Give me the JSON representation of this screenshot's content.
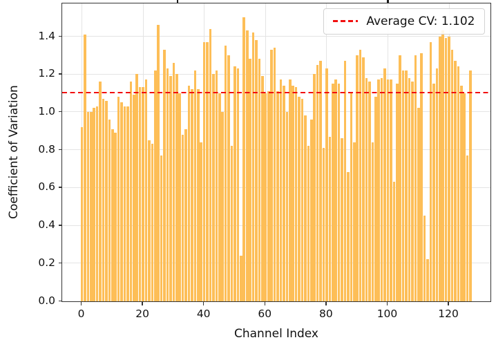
{
  "legend": {
    "label": "Average CV: 1.102"
  },
  "chart_data": {
    "type": "bar",
    "title": "",
    "xlabel": "Channel Index",
    "ylabel": "Coefficient of Variation",
    "x_ticks": [
      0,
      20,
      40,
      60,
      80,
      100,
      120
    ],
    "y_ticks": [
      0.0,
      0.2,
      0.4,
      0.6,
      0.8,
      1.0,
      1.2,
      1.4
    ],
    "y_tick_labels": [
      "0.0",
      "0.2",
      "0.4",
      "0.6",
      "0.8",
      "1.0",
      "1.2",
      "1.4"
    ],
    "xlim": [
      -6.35,
      133.35
    ],
    "ylim": [
      0,
      1.575
    ],
    "grid": true,
    "legend_position": "upper right",
    "bar_color": "#fdbe57",
    "average_line": {
      "value": 1.102,
      "color": "#f10e0e",
      "style": "dashed",
      "label": "Average CV: 1.102"
    },
    "x": [
      0,
      1,
      2,
      3,
      4,
      5,
      6,
      7,
      8,
      9,
      10,
      11,
      12,
      13,
      14,
      15,
      16,
      17,
      18,
      19,
      20,
      21,
      22,
      23,
      24,
      25,
      26,
      27,
      28,
      29,
      30,
      31,
      32,
      33,
      34,
      35,
      36,
      37,
      38,
      39,
      40,
      41,
      42,
      43,
      44,
      45,
      46,
      47,
      48,
      49,
      50,
      51,
      52,
      53,
      54,
      55,
      56,
      57,
      58,
      59,
      60,
      61,
      62,
      63,
      64,
      65,
      66,
      67,
      68,
      69,
      70,
      71,
      72,
      73,
      74,
      75,
      76,
      77,
      78,
      79,
      80,
      81,
      82,
      83,
      84,
      85,
      86,
      87,
      88,
      89,
      90,
      91,
      92,
      93,
      94,
      95,
      96,
      97,
      98,
      99,
      100,
      101,
      102,
      103,
      104,
      105,
      106,
      107,
      108,
      109,
      110,
      111,
      112,
      113,
      114,
      115,
      116,
      117,
      118,
      119,
      120,
      121,
      122,
      123,
      124,
      125,
      126,
      127
    ],
    "values": [
      0.92,
      1.41,
      1.0,
      1.0,
      1.02,
      1.03,
      1.16,
      1.07,
      1.06,
      0.96,
      0.91,
      0.89,
      1.08,
      1.05,
      1.03,
      1.03,
      1.16,
      1.09,
      1.2,
      1.13,
      1.13,
      1.17,
      0.85,
      0.83,
      1.22,
      1.46,
      0.77,
      1.33,
      1.23,
      1.19,
      1.26,
      1.2,
      1.1,
      0.88,
      0.91,
      1.14,
      1.12,
      1.22,
      1.12,
      0.84,
      1.37,
      1.37,
      1.44,
      1.2,
      1.22,
      1.1,
      1.0,
      1.35,
      1.3,
      0.82,
      1.24,
      1.23,
      0.24,
      1.5,
      1.43,
      1.28,
      1.42,
      1.38,
      1.28,
      1.19,
      1.1,
      1.11,
      1.33,
      1.34,
      1.11,
      1.17,
      1.14,
      1.0,
      1.17,
      1.14,
      1.13,
      1.08,
      1.07,
      0.98,
      0.82,
      0.96,
      1.2,
      1.25,
      1.27,
      0.81,
      1.23,
      0.87,
      1.15,
      1.17,
      1.15,
      0.86,
      1.27,
      0.68,
      1.1,
      0.84,
      1.3,
      1.33,
      1.29,
      1.18,
      1.16,
      0.84,
      1.08,
      1.17,
      1.18,
      1.23,
      1.17,
      1.17,
      0.63,
      1.15,
      1.3,
      1.22,
      1.22,
      1.18,
      1.16,
      1.3,
      1.02,
      1.31,
      0.45,
      0.22,
      1.37,
      1.15,
      1.23,
      1.4,
      1.43,
      1.39,
      1.4,
      1.33,
      1.27,
      1.24,
      1.14,
      1.1,
      0.77,
      1.22
    ]
  }
}
